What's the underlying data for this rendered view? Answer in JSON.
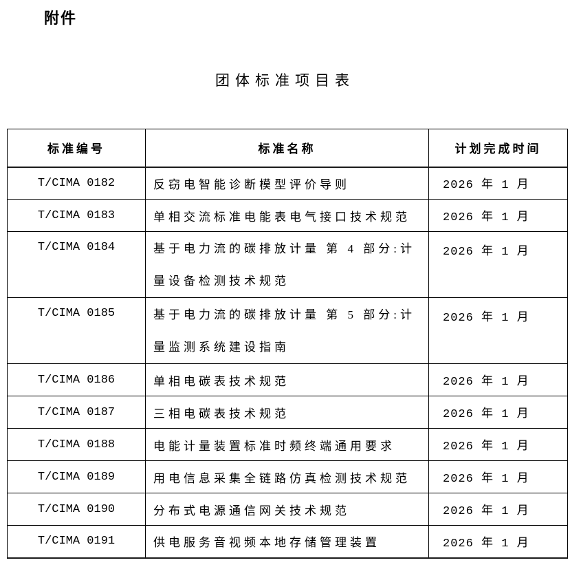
{
  "page": {
    "attachment_label": "附件",
    "title": "团体标准项目表"
  },
  "table": {
    "columns": [
      "标准编号",
      "标准名称",
      "计划完成时间"
    ],
    "rows": [
      {
        "code": "T/CIMA 0182",
        "name": "反窃电智能诊断模型评价导则",
        "date": "2026 年 1 月"
      },
      {
        "code": "T/CIMA 0183",
        "name": "单相交流标准电能表电气接口技术规范",
        "date": "2026 年 1 月"
      },
      {
        "code": "T/CIMA 0184",
        "name": "基于电力流的碳排放计量 第 4 部分:计\n量设备检测技术规范",
        "date": "2026 年 1 月"
      },
      {
        "code": "T/CIMA 0185",
        "name": "基于电力流的碳排放计量 第 5 部分:计\n量监测系统建设指南",
        "date": "2026 年 1 月"
      },
      {
        "code": "T/CIMA 0186",
        "name": "单相电碳表技术规范",
        "date": "2026 年 1 月"
      },
      {
        "code": "T/CIMA 0187",
        "name": "三相电碳表技术规范",
        "date": "2026 年 1 月"
      },
      {
        "code": "T/CIMA 0188",
        "name": "电能计量装置标准时频终端通用要求",
        "date": "2026 年 1 月"
      },
      {
        "code": "T/CIMA 0189",
        "name": "用电信息采集全链路仿真检测技术规范",
        "date": "2026 年 1 月"
      },
      {
        "code": "T/CIMA 0190",
        "name": "分布式电源通信网关技术规范",
        "date": "2026 年 1 月"
      },
      {
        "code": "T/CIMA 0191",
        "name": "供电服务音视频本地存储管理装置",
        "date": "2026 年 1 月"
      }
    ]
  }
}
